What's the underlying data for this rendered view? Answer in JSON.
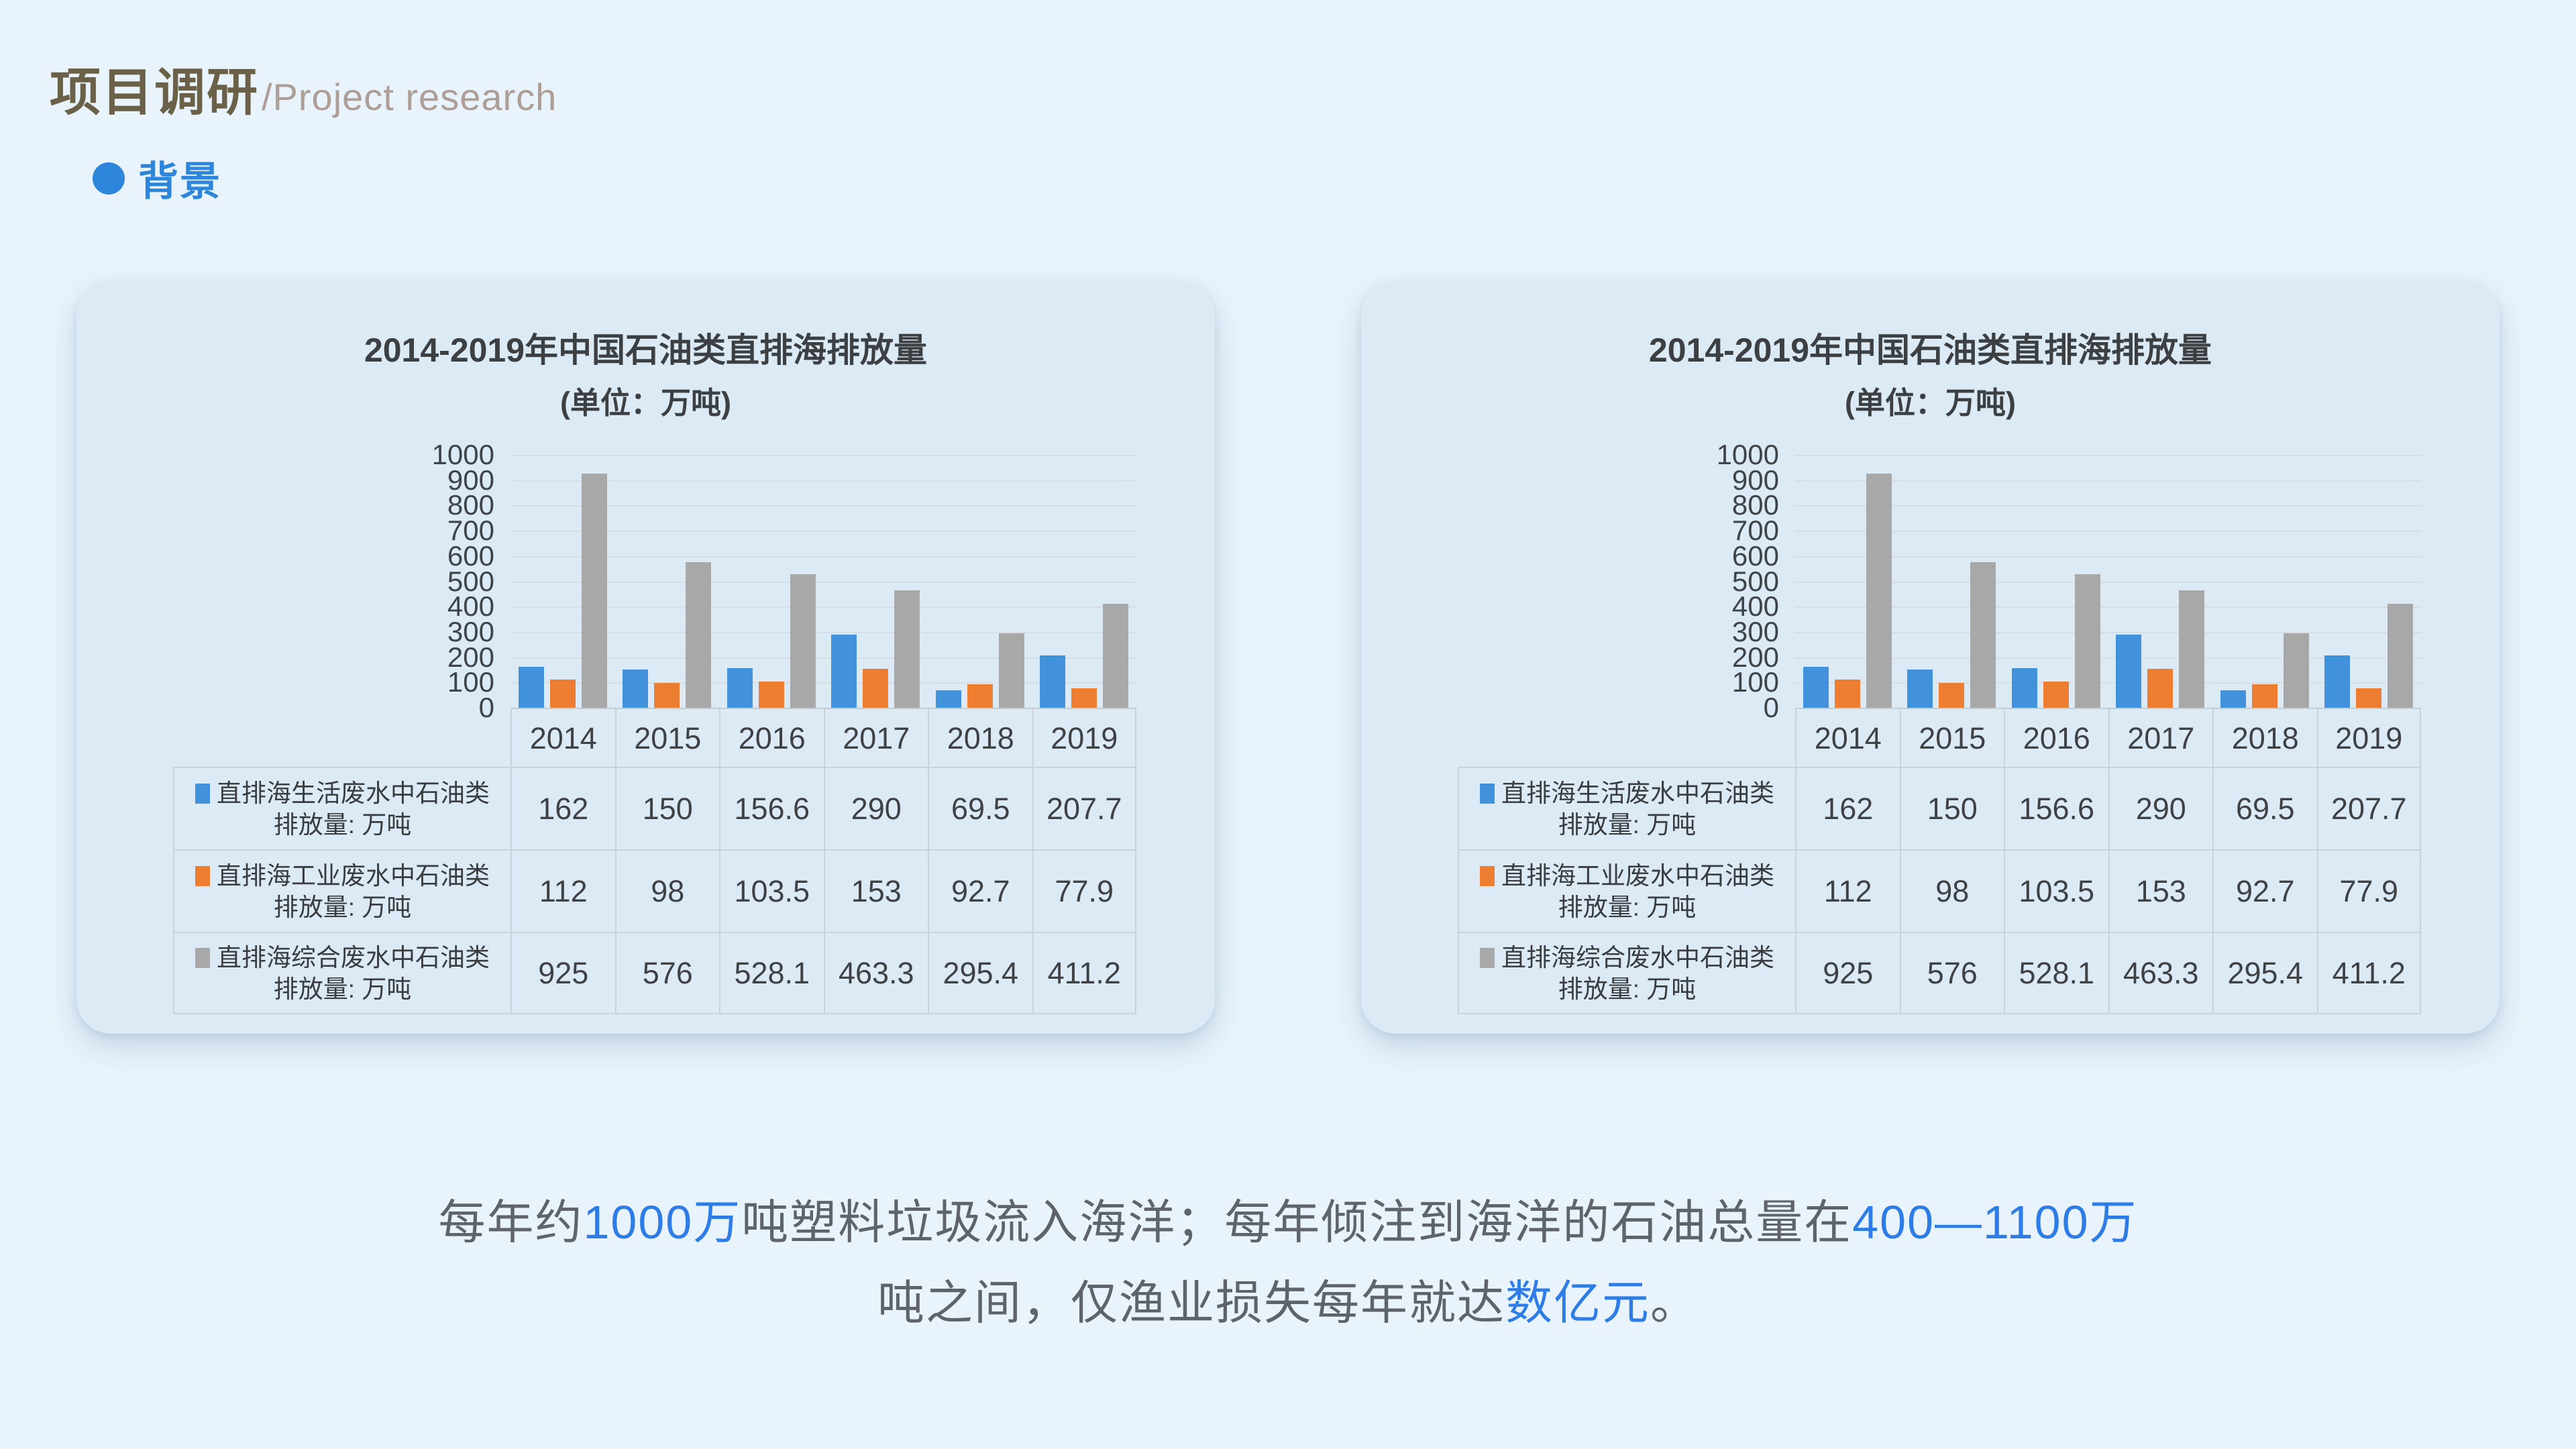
{
  "slide": {
    "title_zh": "项目调研",
    "title_en": "/Project research",
    "section": {
      "label": "背景"
    }
  },
  "colors": {
    "page_background": "#E8F3FB",
    "card_background": "#DCEAF6",
    "accent_blue": "#2E86DA",
    "highlight_blue": "#2E7CE5",
    "title_olive": "#6B6148",
    "title_en_gray": "#AD9F97",
    "body_gray": "#5F646A",
    "bar_blue": "#4292DB",
    "bar_orange": "#ED7D31",
    "bar_gray": "#A8A8A8"
  },
  "chart_data": [
    {
      "type": "bar",
      "title": "2014-2019年中国石油类直排海排放量",
      "subtitle": "(单位：万吨)",
      "categories": [
        "2014",
        "2015",
        "2016",
        "2017",
        "2018",
        "2019"
      ],
      "series": [
        {
          "name": "直排海生活废水中石油类",
          "unit_line": "排放量: 万吨",
          "color": "#4292DB",
          "values": [
            162,
            150,
            156.6,
            290,
            69.5,
            207.7
          ]
        },
        {
          "name": "直排海工业废水中石油类",
          "unit_line": "排放量: 万吨",
          "color": "#ED7D31",
          "values": [
            112,
            98,
            103.5,
            153,
            92.7,
            77.9
          ]
        },
        {
          "name": "直排海综合废水中石油类",
          "unit_line": "排放量: 万吨",
          "color": "#A8A8A8",
          "values": [
            925,
            576,
            528.1,
            463.3,
            295.4,
            411.2
          ]
        }
      ],
      "ylim": [
        0,
        1000
      ],
      "ytick_step": 100,
      "yticks": [
        1000,
        900,
        800,
        700,
        600,
        500,
        400,
        300,
        200,
        100,
        0
      ],
      "grid": true,
      "legend_position": "table-left"
    },
    {
      "type": "bar",
      "title": "2014-2019年中国石油类直排海排放量",
      "subtitle": "(单位：万吨)",
      "categories": [
        "2014",
        "2015",
        "2016",
        "2017",
        "2018",
        "2019"
      ],
      "series": [
        {
          "name": "直排海生活废水中石油类",
          "unit_line": "排放量: 万吨",
          "color": "#4292DB",
          "values": [
            162,
            150,
            156.6,
            290,
            69.5,
            207.7
          ]
        },
        {
          "name": "直排海工业废水中石油类",
          "unit_line": "排放量: 万吨",
          "color": "#ED7D31",
          "values": [
            112,
            98,
            103.5,
            153,
            92.7,
            77.9
          ]
        },
        {
          "name": "直排海综合废水中石油类",
          "unit_line": "排放量: 万吨",
          "color": "#A8A8A8",
          "values": [
            925,
            576,
            528.1,
            463.3,
            295.4,
            411.2
          ]
        }
      ],
      "ylim": [
        0,
        1000
      ],
      "ytick_step": 100,
      "yticks": [
        1000,
        900,
        800,
        700,
        600,
        500,
        400,
        300,
        200,
        100,
        0
      ],
      "grid": true,
      "legend_position": "table-left"
    }
  ],
  "paragraph": {
    "lines": [
      [
        {
          "text": "每年约",
          "highlight": false
        },
        {
          "text": "1000万",
          "highlight": true
        },
        {
          "text": "吨塑料垃圾流入海洋；每年倾注到海洋的石油总量在",
          "highlight": false
        },
        {
          "text": "400—1100万",
          "highlight": true
        }
      ],
      [
        {
          "text": "吨之间，仅渔业损失每年就达",
          "highlight": false
        },
        {
          "text": "数亿元",
          "highlight": true
        },
        {
          "text": "。",
          "highlight": false
        }
      ]
    ]
  }
}
